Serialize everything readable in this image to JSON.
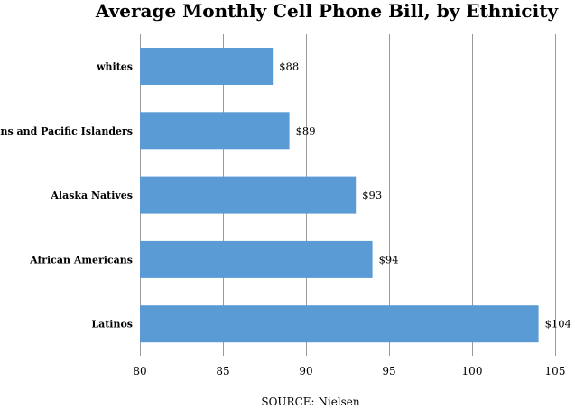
{
  "chart_data": {
    "type": "bar",
    "orientation": "horizontal",
    "title": "Average Monthly Cell Phone Bill, by Ethnicity",
    "categories": [
      "whites",
      "Asians and Pacific Islanders",
      "Alaska Natives",
      "African Americans",
      "Latinos"
    ],
    "values": [
      88,
      89,
      93,
      94,
      104
    ],
    "data_labels": [
      "$88",
      "$89",
      "$93",
      "$94",
      "$104"
    ],
    "xlim": [
      80,
      105
    ],
    "x_ticks": [
      "80",
      "85",
      "90",
      "95",
      "100",
      "105"
    ],
    "xlabel": "",
    "ylabel": "",
    "grid": true,
    "legend": "none",
    "bar_color": "#5b9bd5",
    "source": "SOURCE: Nielsen"
  }
}
